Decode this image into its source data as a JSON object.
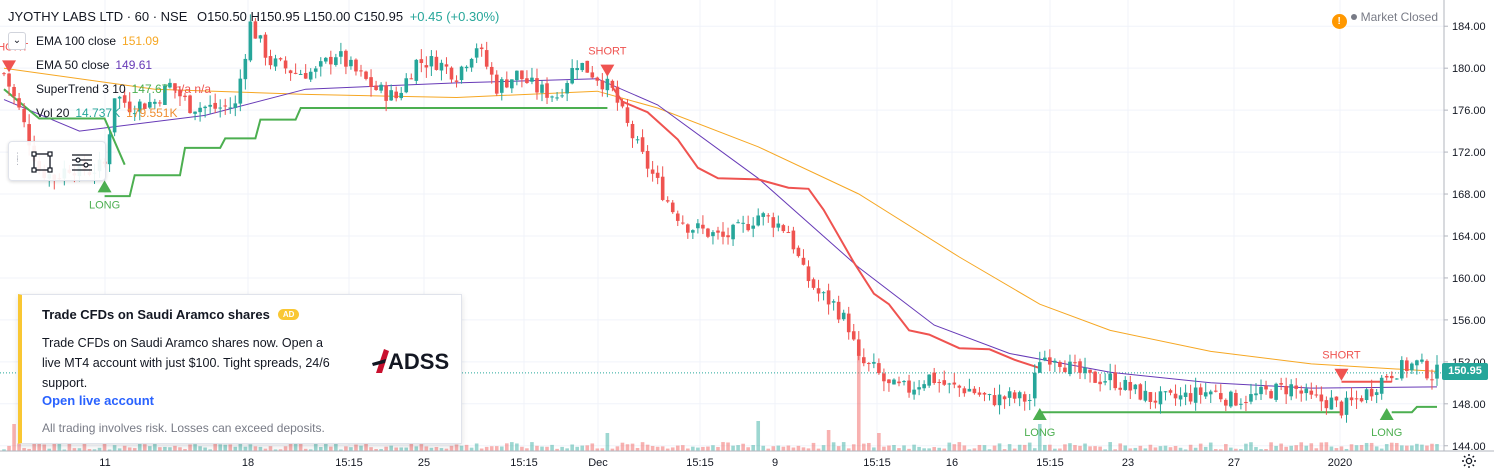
{
  "header": {
    "symbol": "JYOTHY LABS LTD · 60 · NSE",
    "open": "O150.50",
    "high": "H150.95",
    "low": "L150.00",
    "close": "C150.95",
    "change": "+0.45 (+0.30%)",
    "market_status": "Market Closed",
    "warning_icon": "!",
    "collapse_icon": "chevron-down-icon"
  },
  "indicators": [
    {
      "label": "EMA 100 close",
      "value": "151.09",
      "color": "#f6a723"
    },
    {
      "label": "EMA 50 close",
      "value": "149.61",
      "color": "#673ab7"
    },
    {
      "label": "SuperTrend 3 10",
      "value": "147.67",
      "extra": "n/a n/a",
      "color": "#4caf50",
      "extra_color": "#ef5350"
    },
    {
      "label": "Vol 20",
      "value": "14.737K",
      "extra": "179.551K",
      "color": "#26a69a",
      "extra_color": "#ef8e31"
    }
  ],
  "toolbar": {
    "icons": [
      "rectangle-select-icon",
      "object-tree-icon"
    ]
  },
  "ad": {
    "title": "Trade CFDs on Saudi Aramco shares",
    "badge": "AD",
    "body": "Trade CFDs on Saudi Aramco shares now. Open a live MT4 account with just $100. Tight spreads, 24/6 support.",
    "link": "Open live account",
    "disclaimer": "All trading involves risk. Losses can exceed deposits.",
    "logo_text": "ADSS"
  },
  "price_label": "150.95",
  "colors": {
    "up": "#26a69a",
    "down": "#ef5350",
    "ema100": "#f6a723",
    "ema50": "#673ab7",
    "supertrend_up": "#4caf50",
    "supertrend_down": "#ef5350",
    "grid": "#f0f3fa",
    "axis_text": "#131722"
  },
  "chart_data": {
    "type": "candlestick",
    "y_axis": {
      "ticks": [
        144,
        148,
        152,
        156,
        160,
        164,
        168,
        172,
        176,
        180,
        184
      ],
      "ylim": [
        143.5,
        186.5
      ]
    },
    "x_axis": {
      "ticks": [
        "11",
        "18",
        "15:15",
        "25",
        "15:15",
        "Dec",
        "15:15",
        "9",
        "15:15",
        "16",
        "15:15",
        "23",
        "27",
        "2020"
      ],
      "bar_count": 286
    },
    "signals": [
      {
        "type": "SHORT",
        "bar": 1,
        "price": 179.6
      },
      {
        "type": "LONG",
        "bar": 20,
        "price": 169.3
      },
      {
        "type": "SHORT",
        "bar": 120,
        "price": 179.2
      },
      {
        "type": "LONG",
        "bar": 206,
        "price": 147.6
      },
      {
        "type": "SHORT",
        "bar": 266,
        "price": 150.2
      },
      {
        "type": "LONG",
        "bar": 275,
        "price": 147.6
      }
    ],
    "path_points": [
      [
        0,
        179.5
      ],
      [
        3,
        176
      ],
      [
        7,
        170.3
      ],
      [
        10,
        169.6
      ],
      [
        13,
        170.6
      ],
      [
        17,
        170.2
      ],
      [
        20,
        170.8
      ],
      [
        22,
        177.5
      ],
      [
        25,
        176.4
      ],
      [
        30,
        176.8
      ],
      [
        33,
        178.4
      ],
      [
        37,
        176.4
      ],
      [
        42,
        176.2
      ],
      [
        46,
        176.4
      ],
      [
        49,
        184.2
      ],
      [
        53,
        180.6
      ],
      [
        58,
        179.6
      ],
      [
        62,
        179.6
      ],
      [
        66,
        181.4
      ],
      [
        70,
        179.6
      ],
      [
        74,
        178
      ],
      [
        78,
        177.2
      ],
      [
        82,
        180.6
      ],
      [
        86,
        180.6
      ],
      [
        90,
        179.4
      ],
      [
        94,
        182.2
      ],
      [
        98,
        178.2
      ],
      [
        102,
        179.4
      ],
      [
        106,
        178
      ],
      [
        110,
        177.4
      ],
      [
        114,
        180.6
      ],
      [
        118,
        179.2
      ],
      [
        121,
        177.8
      ],
      [
        124,
        174.5
      ],
      [
        127,
        171.5
      ],
      [
        130,
        169
      ],
      [
        133,
        166.5
      ],
      [
        136,
        165
      ],
      [
        139,
        164.5
      ],
      [
        143,
        163.8
      ],
      [
        147,
        164.8
      ],
      [
        150,
        166
      ],
      [
        153,
        165.4
      ],
      [
        156,
        164.5
      ],
      [
        159,
        160.5
      ],
      [
        162,
        158.5
      ],
      [
        165,
        157.5
      ],
      [
        168,
        155.4
      ],
      [
        170,
        152
      ],
      [
        173,
        151.3
      ],
      [
        176,
        149.6
      ],
      [
        180,
        149.4
      ],
      [
        184,
        150.6
      ],
      [
        188,
        149.6
      ],
      [
        192,
        149.4
      ],
      [
        196,
        148.4
      ],
      [
        200,
        148.6
      ],
      [
        204,
        148.4
      ],
      [
        206,
        152.4
      ],
      [
        209,
        152.6
      ],
      [
        212,
        151.4
      ],
      [
        216,
        150.4
      ],
      [
        220,
        150.4
      ],
      [
        224,
        149.4
      ],
      [
        228,
        148.5
      ],
      [
        232,
        148.4
      ],
      [
        236,
        148.8
      ],
      [
        240,
        149.2
      ],
      [
        244,
        148.4
      ],
      [
        248,
        148.6
      ],
      [
        252,
        149.2
      ],
      [
        256,
        149.6
      ],
      [
        260,
        148.4
      ],
      [
        264,
        148.2
      ],
      [
        266,
        147.5
      ],
      [
        269,
        148.4
      ],
      [
        272,
        149.4
      ],
      [
        275,
        150.8
      ],
      [
        278,
        151.4
      ],
      [
        281,
        151.8
      ],
      [
        284,
        150.8
      ],
      [
        285,
        150.95
      ]
    ],
    "ema100": [
      [
        0,
        180
      ],
      [
        30,
        178
      ],
      [
        60,
        177.5
      ],
      [
        90,
        177.2
      ],
      [
        118,
        177.8
      ],
      [
        130,
        176.2
      ],
      [
        150,
        172.5
      ],
      [
        170,
        168
      ],
      [
        190,
        162
      ],
      [
        206,
        157.5
      ],
      [
        220,
        155
      ],
      [
        240,
        153
      ],
      [
        260,
        151.8
      ],
      [
        285,
        151.09
      ]
    ],
    "ema50": [
      [
        0,
        177
      ],
      [
        15,
        174
      ],
      [
        40,
        175.5
      ],
      [
        60,
        178
      ],
      [
        90,
        178.6
      ],
      [
        118,
        179
      ],
      [
        130,
        176.5
      ],
      [
        150,
        169.5
      ],
      [
        170,
        161
      ],
      [
        185,
        155.5
      ],
      [
        200,
        152.8
      ],
      [
        220,
        151
      ],
      [
        240,
        150
      ],
      [
        260,
        149.5
      ],
      [
        285,
        149.61
      ]
    ],
    "supertrend": [
      [
        [
          0,
          178
        ],
        [
          7,
          175.2
        ],
        [
          20,
          175.2
        ],
        [
          24,
          170.8
        ]
      ],
      [
        [
          20,
          167.8
        ],
        [
          25,
          167.8
        ],
        [
          26,
          169.8
        ],
        [
          35,
          169.8
        ],
        [
          36,
          172.4
        ],
        [
          43,
          172.4
        ],
        [
          44,
          173.3
        ],
        [
          50,
          173.3
        ],
        [
          51,
          175.1
        ],
        [
          58,
          175.1
        ],
        [
          59,
          176.2
        ],
        [
          120,
          176.2
        ]
      ],
      [
        [
          121,
          178.2
        ],
        [
          123,
          176.8
        ],
        [
          128,
          175.8
        ],
        [
          134,
          173.2
        ],
        [
          138,
          170.5
        ],
        [
          142,
          169.5
        ],
        [
          150,
          169.4
        ],
        [
          156,
          168.6
        ],
        [
          160,
          168.5
        ],
        [
          163,
          166.5
        ],
        [
          166,
          164
        ],
        [
          169,
          161.5
        ],
        [
          173,
          158.5
        ],
        [
          176,
          157.5
        ],
        [
          180,
          155
        ],
        [
          184,
          154.6
        ],
        [
          190,
          153.3
        ],
        [
          196,
          153.2
        ],
        [
          201,
          152.2
        ],
        [
          206,
          151.4
        ]
      ],
      [
        [
          206,
          147.2
        ],
        [
          210,
          147.2
        ],
        [
          211,
          147.2
        ],
        [
          266,
          147.2
        ]
      ],
      [
        [
          266,
          150.1
        ],
        [
          276,
          150.1
        ]
      ],
      [
        [
          276,
          147.2
        ],
        [
          280,
          147.2
        ],
        [
          281,
          147.7
        ],
        [
          285,
          147.7
        ]
      ]
    ],
    "volume_spikes": [
      [
        2,
        0.9
      ],
      [
        6,
        0.7
      ],
      [
        120,
        0.6
      ],
      [
        150,
        1.0
      ],
      [
        164,
        0.7
      ],
      [
        170,
        3.4
      ],
      [
        174,
        0.6
      ],
      [
        206,
        0.9
      ]
    ]
  }
}
